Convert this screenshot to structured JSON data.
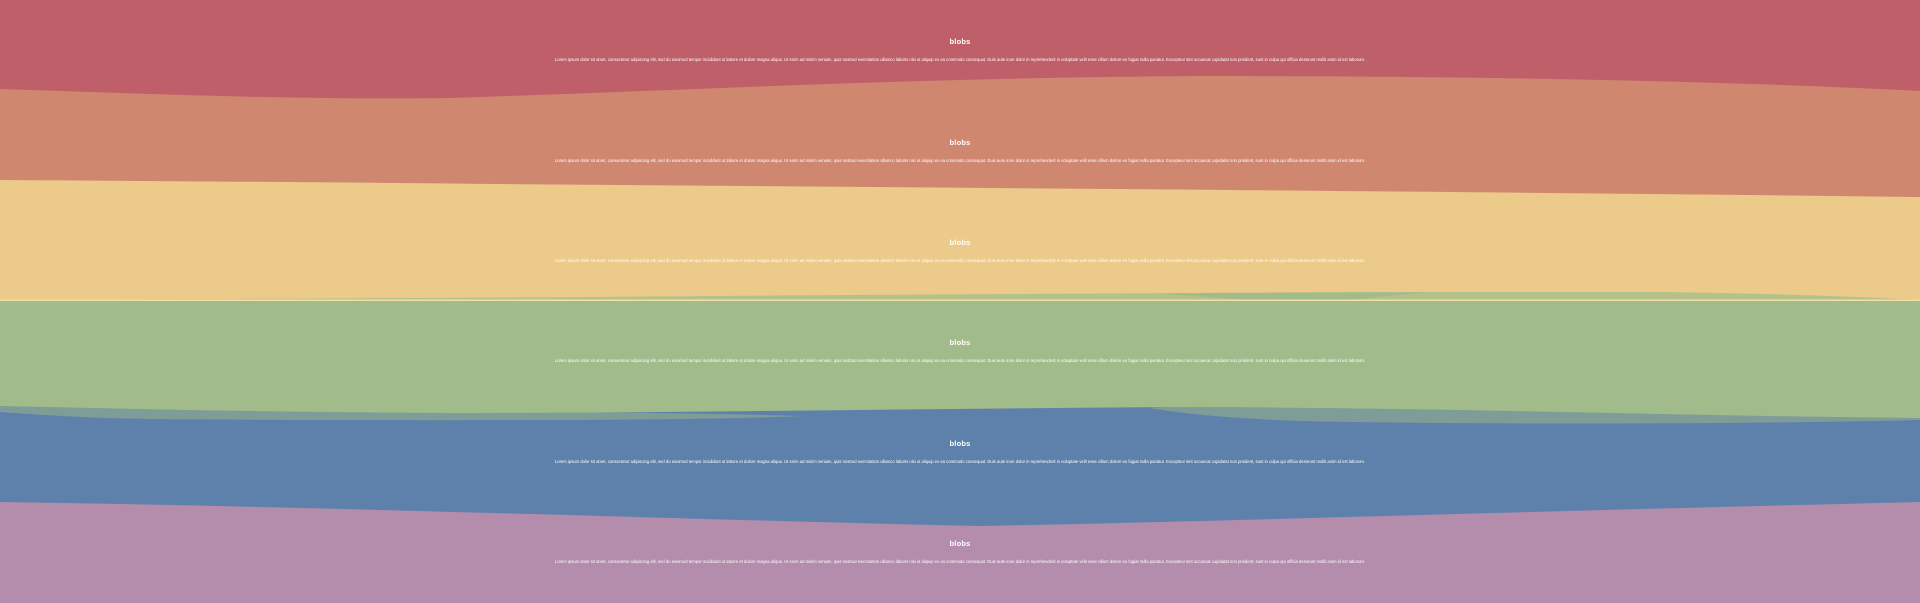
{
  "sections": [
    {
      "title": "blobs",
      "text": "Lorem ipsum dolor sit amet, consectetur adipiscing elit, sed do eiusmod tempor incididunt ut labore et dolore magna aliqua. Ut enim ad minim veniam, quis nostrud exercitation ullamco laboris nisi ut aliquip ex ea commodo consequat. Duis aute irure dolor in reprehenderit in voluptate velit esse cillum dolore eu fugiat nulla pariatur. Excepteur sint occaecat cupidatat non proident, sunt in culpa qui officia deserunt mollit anim id est laborum.",
      "color": "#bf5f69"
    },
    {
      "title": "blobs",
      "text": "Lorem ipsum dolor sit amet, consectetur adipiscing elit, sed do eiusmod tempor incididunt ut labore et dolore magna aliqua. Ut enim ad minim veniam, quis nostrud exercitation ullamco laboris nisi ut aliquip ex ea commodo consequat. Duis aute irure dolor in reprehenderit in voluptate velit esse cillum dolore eu fugiat nulla pariatur. Excepteur sint occaecat cupidatat non proident, sunt in culpa qui officia deserunt mollit anim id est laborum.",
      "color": "#d0876f"
    },
    {
      "title": "blobs",
      "text": "Lorem ipsum dolor sit amet, consectetur adipiscing elit, sed do eiusmod tempor incididunt ut labore et dolore magna aliqua. Ut enim ad minim veniam, quis nostrud exercitation ullamco laboris nisi ut aliquip ex ea commodo consequat. Duis aute irure dolor in reprehenderit in voluptate velit esse cillum dolore eu fugiat nulla pariatur. Excepteur sint occaecat cupidatat non proident, sunt in culpa qui officia deserunt mollit anim id est laborum.",
      "color": "#ebca8a"
    },
    {
      "title": "blobs",
      "text": "Lorem ipsum dolor sit amet, consectetur adipiscing elit, sed do eiusmod tempor incididunt ut labore et dolore magna aliqua. Ut enim ad minim veniam, quis nostrud exercitation ullamco laboris nisi ut aliquip ex ea commodo consequat. Duis aute irure dolor in reprehenderit in voluptate velit esse cillum dolore eu fugiat nulla pariatur. Excepteur sint occaecat cupidatat non proident, sunt in culpa qui officia deserunt mollit anim id est laborum.",
      "color": "#a2bb8b"
    },
    {
      "title": "blobs",
      "text": "Lorem ipsum dolor sit amet, consectetur adipiscing elit, sed do eiusmod tempor incididunt ut labore et dolore magna aliqua. Ut enim ad minim veniam, quis nostrud exercitation ullamco laboris nisi ut aliquip ex ea commodo consequat. Duis aute irure dolor in reprehenderit in voluptate velit esse cillum dolore eu fugiat nulla pariatur. Excepteur sint occaecat cupidatat non proident, sunt in culpa qui officia deserunt mollit anim id est laborum.",
      "color": "#5e81ab"
    },
    {
      "title": "blobs",
      "text": "Lorem ipsum dolor sit amet, consectetur adipiscing elit, sed do eiusmod tempor incididunt ut labore et dolore magna aliqua. Ut enim ad minim veniam, quis nostrud exercitation ullamco laboris nisi ut aliquip ex ea commodo consequat. Duis aute irure dolor in reprehenderit in voluptate velit esse cillum dolore eu fugiat nulla pariatur. Excepteur sint occaecat cupidatat non proident, sunt in culpa qui officia deserunt mollit anim id est laborum.",
      "color": "#b48cac"
    }
  ]
}
